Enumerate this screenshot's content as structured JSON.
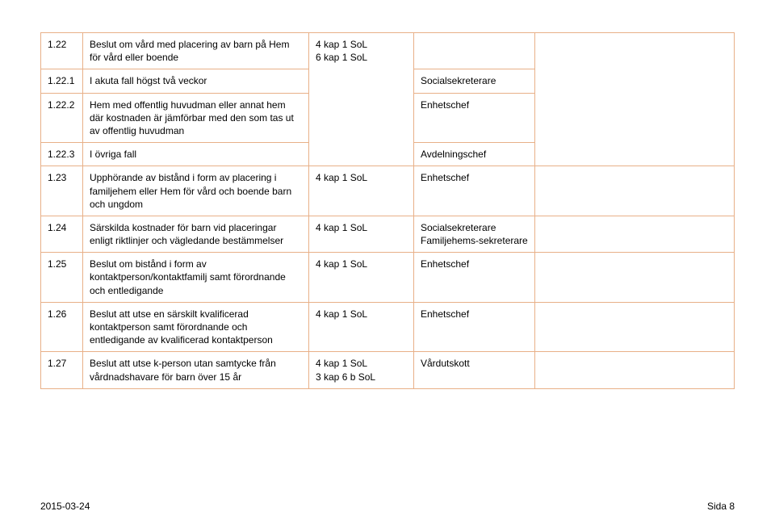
{
  "table": {
    "border_color": "#e8b088",
    "rows": [
      {
        "num": "1.22",
        "desc": "Beslut om vård med placering av barn på Hem för vård eller boende",
        "ref": "4 kap 1 SoL\n6 kap 1 SoL",
        "role": ""
      },
      {
        "num": "1.22.1",
        "desc": "I akuta fall högst två veckor",
        "ref": "",
        "role": "Socialsekreterare"
      },
      {
        "num": "1.22.2",
        "desc": "Hem med offentlig huvudman eller annat hem där kostnaden är jämförbar med den som tas ut av offentlig huvudman",
        "ref": "",
        "role": "Enhetschef"
      },
      {
        "num": "1.22.3",
        "desc": "I övriga fall",
        "ref": "",
        "role": "Avdelningschef"
      },
      {
        "num": "1.23",
        "desc": "Upphörande av bistånd i form av placering i familjehem eller Hem för vård och boende barn och ungdom",
        "ref": "4 kap 1 SoL",
        "role": "Enhetschef"
      },
      {
        "num": "1.24",
        "desc": "Särskilda kostnader för barn vid placeringar enligt riktlinjer och vägledande bestämmelser",
        "ref": "4 kap 1 SoL",
        "role": "Socialsekreterare\nFamiljehems-sekreterare"
      },
      {
        "num": "1.25",
        "desc": "Beslut om bistånd i form av kontaktperson/kontaktfamilj samt förordnande och entledigande",
        "ref": "4 kap 1 SoL",
        "role": "Enhetschef"
      },
      {
        "num": "1.26",
        "desc": "Beslut att utse en särskilt kvalificerad kontaktperson samt förordnande och entledigande av kvalificerad kontaktperson",
        "ref": "4 kap 1 SoL",
        "role": "Enhetschef"
      },
      {
        "num": "1.27",
        "desc": "Beslut att utse k-person utan samtycke från vårdnadshavare för barn över 15 år",
        "ref": "4 kap 1 SoL\n3 kap 6 b SoL",
        "role": "Vårdutskott"
      }
    ]
  },
  "footer": {
    "left": "2015-03-24",
    "right": "Sida 8"
  }
}
